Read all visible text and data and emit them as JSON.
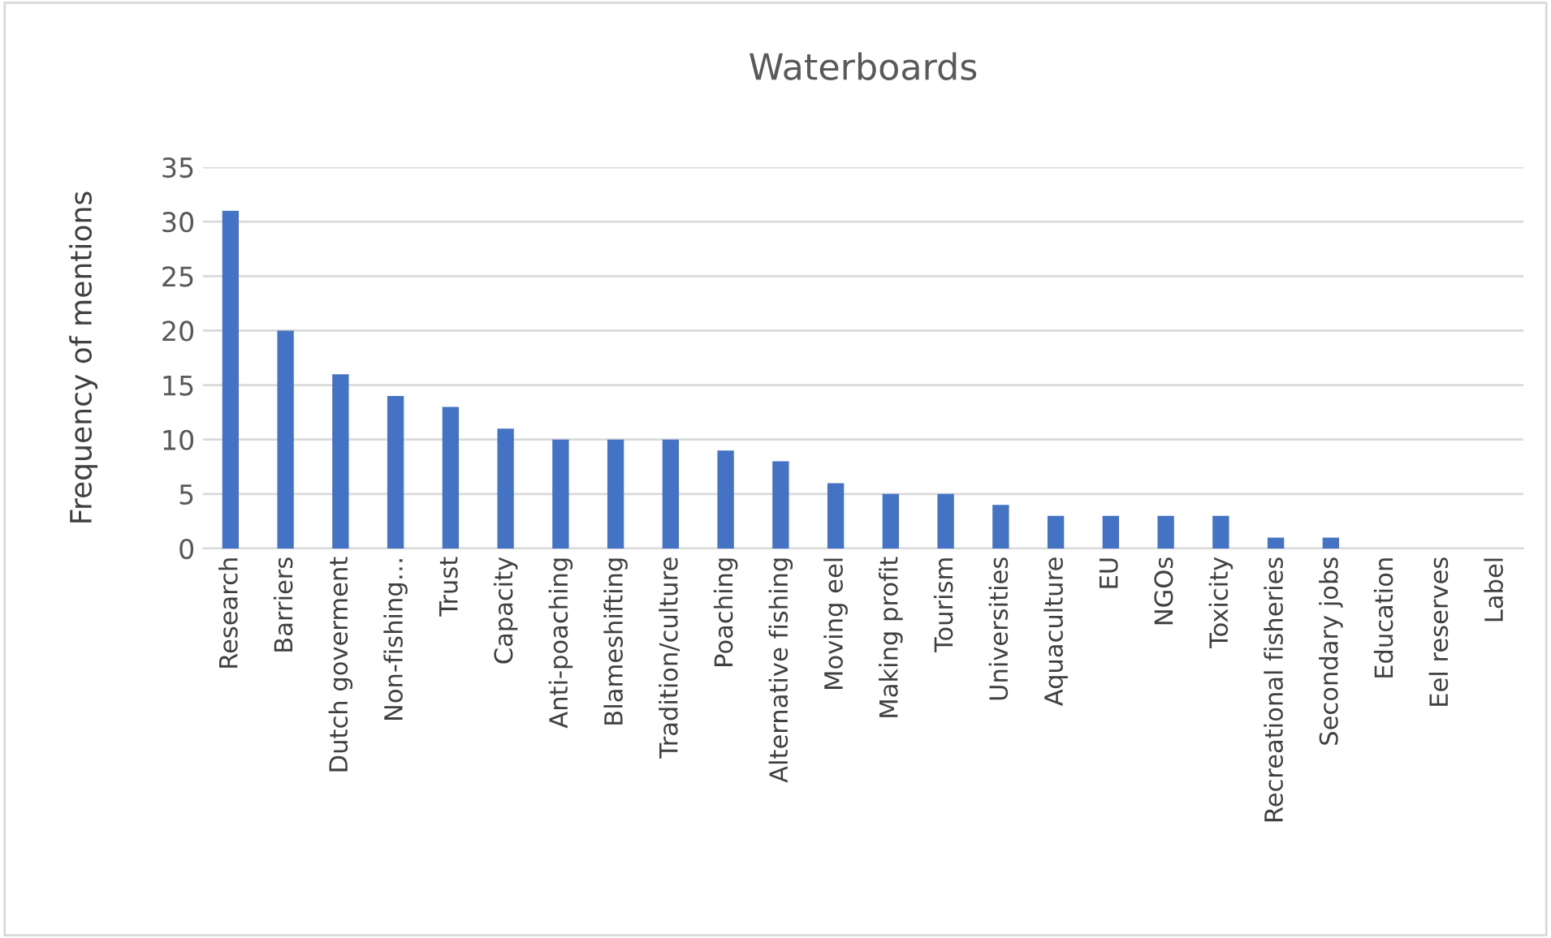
{
  "chart_data": {
    "type": "bar",
    "title": "Waterboards",
    "ylabel": "Frequency of mentions",
    "categories": [
      "Research",
      "Barriers",
      "Dutch goverment",
      "Non-fishing…",
      "Trust",
      "Capacity",
      "Anti-poaching",
      "Blameshifting",
      "Tradition/culture",
      "Poaching",
      "Alternative fishing",
      "Moving eel",
      "Making profit",
      "Tourism",
      "Universities",
      "Aquaculture",
      "EU",
      "NGOs",
      "Toxicity",
      "Recreational fisheries",
      "Secondary jobs",
      "Education",
      "Eel reserves",
      "Label"
    ],
    "values": [
      31,
      20,
      16,
      14,
      13,
      11,
      10,
      10,
      10,
      9,
      8,
      6,
      5,
      5,
      4,
      3,
      3,
      3,
      3,
      1,
      1,
      0,
      0,
      0
    ],
    "color": "#4472c4",
    "ylim": [
      0,
      35
    ],
    "yticks": [
      0,
      5,
      10,
      15,
      20,
      25,
      30,
      35
    ],
    "grid": "y",
    "legend": false
  }
}
